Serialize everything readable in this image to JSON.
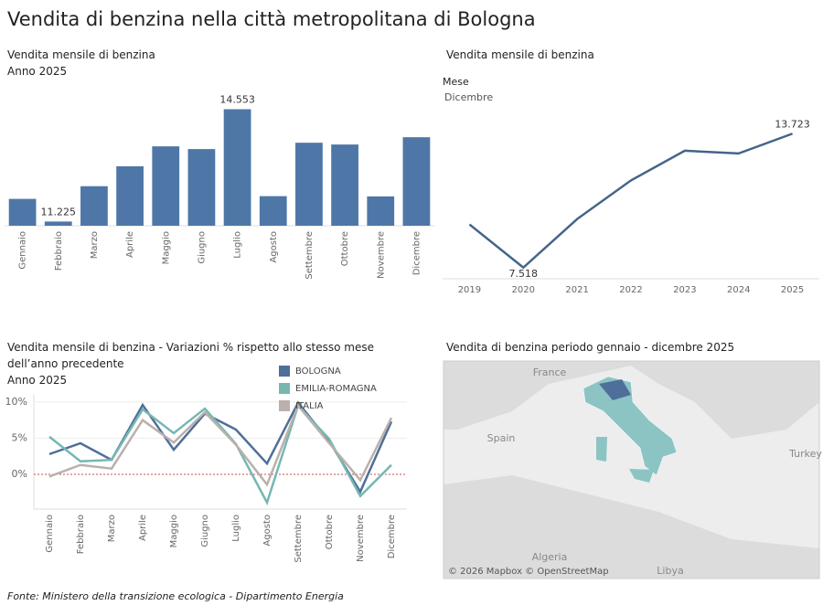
{
  "title": "Vendita di benzina nella città metropolitana di Bologna",
  "source": "Fonte: Ministero della transizione ecologica - Dipartimento Energia",
  "chart_data": [
    {
      "type": "bar",
      "title": "Vendita mensile di benzina",
      "subtitle": "Anno 2025",
      "color": "#4e77a7",
      "categories": [
        "Gennaio",
        "Febbraio",
        "Marzo",
        "Aprile",
        "Maggio",
        "Giugno",
        "Luglio",
        "Agosto",
        "Settembre",
        "Ottobre",
        "Novembre",
        "Dicembre"
      ],
      "values": [
        11896,
        11225,
        12272,
        12862,
        13453,
        13372,
        14553,
        11977,
        13560,
        13507,
        11970,
        13723
      ],
      "value_labels": [
        null,
        "11.225",
        null,
        null,
        null,
        null,
        "14.553",
        null,
        null,
        null,
        null,
        null
      ],
      "ylim": [
        11100,
        15000
      ]
    },
    {
      "type": "line",
      "title": "Vendita mensile di benzina",
      "subtitle": "Mese",
      "filter": "Dicembre",
      "color": "#44648a",
      "categories": [
        "2019",
        "2020",
        "2021",
        "2022",
        "2023",
        "2024",
        "2025"
      ],
      "values": [
        9517,
        7518,
        9767,
        11558,
        12932,
        12807,
        13723
      ],
      "value_labels": [
        null,
        "7.518",
        null,
        null,
        null,
        null,
        "13.723"
      ],
      "ylim": [
        7000,
        14200
      ]
    },
    {
      "type": "line",
      "title": "Vendita mensile di benzina - Variazioni % rispetto allo stesso mese dell’anno precedente",
      "subtitle": "Anno 2025",
      "categories": [
        "Gennaio",
        "Febbraio",
        "Marzo",
        "Aprile",
        "Maggio",
        "Giugno",
        "Luglio",
        "Agosto",
        "Settembre",
        "Ottobre",
        "Novembre",
        "Dicembre"
      ],
      "series": [
        {
          "name": "BOLOGNA",
          "color": "#4e6f9a",
          "values": [
            2.8,
            4.3,
            2.0,
            9.6,
            3.4,
            8.4,
            6.2,
            1.5,
            9.9,
            4.6,
            -2.4,
            7.3
          ]
        },
        {
          "name": "EMILIA-ROMAGNA",
          "color": "#76b7b2",
          "values": [
            5.2,
            1.8,
            2.0,
            9.0,
            5.7,
            9.1,
            4.2,
            -3.9,
            9.5,
            4.9,
            -3.0,
            1.3
          ]
        },
        {
          "name": "ITALIA",
          "color": "#bab0ac",
          "values": [
            -0.3,
            1.3,
            0.8,
            7.5,
            4.4,
            8.6,
            4.1,
            -1.4,
            9.5,
            4.3,
            -0.8,
            7.8
          ]
        }
      ],
      "ylim": [
        -4.8,
        11
      ],
      "yticks": [
        {
          "value": 0,
          "label": "0%"
        },
        {
          "value": 5,
          "label": "5%"
        },
        {
          "value": 10,
          "label": "10%"
        }
      ]
    }
  ],
  "map": {
    "title": "Vendita di benzina periodo gennaio - dicembre 2025",
    "places": [
      "France",
      "Spain",
      "Turkey",
      "Algeria",
      "Libya"
    ],
    "attribution": "© 2026 Mapbox © OpenStreetMap"
  }
}
